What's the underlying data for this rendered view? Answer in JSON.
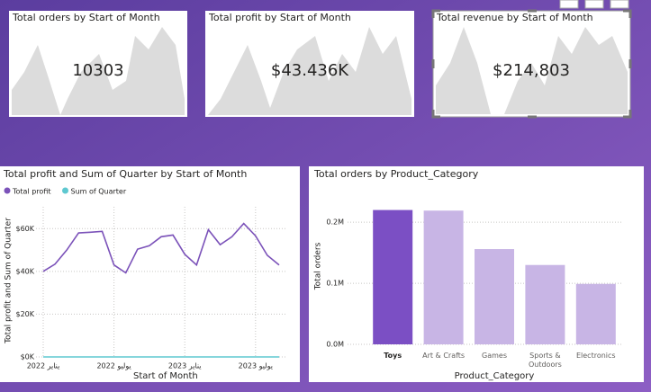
{
  "cards": [
    {
      "title": "Total orders by Start of Month",
      "value": "10303"
    },
    {
      "title": "Total profit by Start of Month",
      "value": "$43.436K"
    },
    {
      "title": "Total revenue by Start of Month",
      "value": "$214,803"
    }
  ],
  "chart_data": [
    {
      "type": "line",
      "title": "Total profit and Sum of Quarter by Start of Month",
      "x_label": "Start of Month",
      "y_label": "Total profit and Sum of Quarter",
      "x": [
        "2022-01",
        "2022-02",
        "2022-03",
        "2022-04",
        "2022-05",
        "2022-06",
        "2022-07",
        "2022-08",
        "2022-09",
        "2022-10",
        "2022-11",
        "2022-12",
        "2023-01",
        "2023-02",
        "2023-03",
        "2023-04",
        "2023-05",
        "2023-06",
        "2023-07",
        "2023-08",
        "2023-09"
      ],
      "series": [
        {
          "name": "Total profit",
          "color": "#7b52b9",
          "values": [
            40000,
            43400,
            50000,
            58000,
            58300,
            58700,
            43000,
            39300,
            50400,
            52000,
            56200,
            57000,
            48000,
            43000,
            59500,
            52500,
            56200,
            62400,
            56600,
            47500,
            43000
          ]
        },
        {
          "name": "Sum of Quarter",
          "color": "#5ec8d0",
          "values": [
            1,
            1,
            1,
            2,
            2,
            2,
            3,
            3,
            3,
            4,
            4,
            4,
            1,
            1,
            1,
            2,
            2,
            2,
            3,
            3,
            3
          ]
        }
      ],
      "ylim": [
        0,
        66000
      ],
      "yticks": [
        {
          "value": 0,
          "label": "$0K"
        },
        {
          "value": 20000,
          "label": "$20K"
        },
        {
          "value": 40000,
          "label": "$40K"
        },
        {
          "value": 60000,
          "label": "$60K"
        }
      ],
      "xticks": [
        {
          "value": "2022-01",
          "label": "2022 يناير"
        },
        {
          "value": "2022-07",
          "label": "2022 يوليو"
        },
        {
          "value": "2023-01",
          "label": "2023 يناير"
        },
        {
          "value": "2023-07",
          "label": "2023 يوليو"
        }
      ],
      "grid": true
    },
    {
      "type": "bar",
      "title": "Total orders by Product_Category",
      "x_label": "Product_Category",
      "y_label": "Total orders",
      "categories": [
        "Toys",
        "Art & Crafts",
        "Games",
        "Sports & Outdoors",
        "Electronics"
      ],
      "values": [
        220000,
        219000,
        156000,
        130000,
        99000
      ],
      "colors": [
        "#7b4fc4",
        "#c8b5e5",
        "#c8b5e5",
        "#c8b5e5",
        "#c8b5e5"
      ],
      "ylim": [
        0,
        240000
      ],
      "yticks": [
        {
          "value": 0,
          "label": "0.0M"
        },
        {
          "value": 100000,
          "label": "0.1M"
        },
        {
          "value": 200000,
          "label": "0.2M"
        }
      ],
      "grid": true
    }
  ]
}
